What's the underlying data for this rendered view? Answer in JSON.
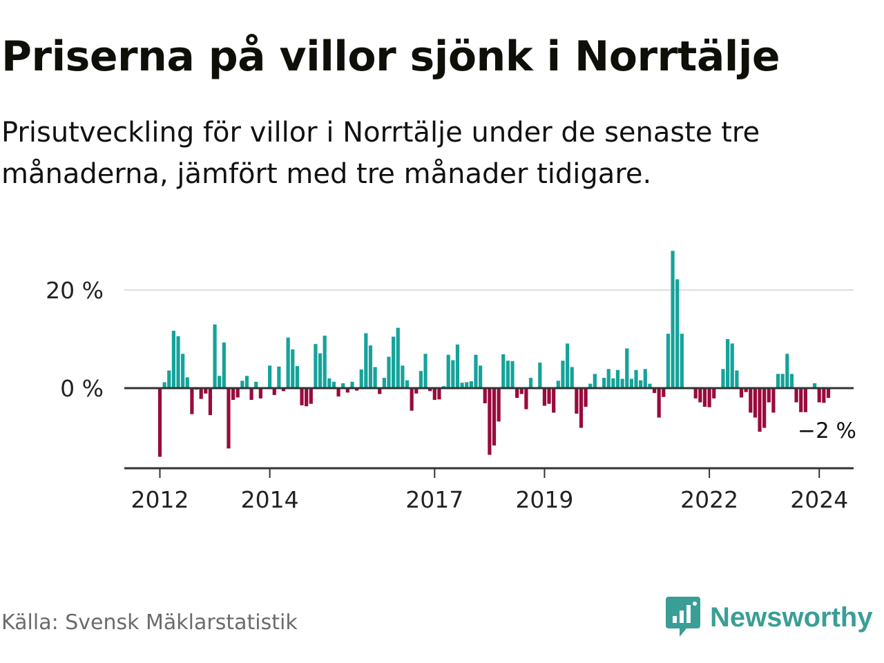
{
  "header": {
    "title": "Priserna på villor sjönk i Norrtälje",
    "subtitle_line1": "Prisutveckling för villor i Norrtälje under de senaste tre",
    "subtitle_line2": "månaderna, jämfört med tre månader tidigare."
  },
  "footer": {
    "source": "Källa: Svensk Mäklarstatistik",
    "brand": "Newsworthy"
  },
  "colors": {
    "positive": "#15a39a",
    "negative": "#990a3d",
    "axis": "#333333",
    "grid": "#dddddd",
    "brand": "#3a9e96"
  },
  "chart_data": {
    "type": "bar",
    "title": "Priserna på villor sjönk i Norrtälje",
    "xlabel": "",
    "ylabel": "",
    "ylim": [
      -16,
      29
    ],
    "yticks": [
      {
        "value": 0,
        "label": "0 %"
      },
      {
        "value": 20,
        "label": "20 %"
      }
    ],
    "xticks": [
      {
        "value": 0,
        "label": "2012"
      },
      {
        "value": 24,
        "label": "2014"
      },
      {
        "value": 60,
        "label": "2017"
      },
      {
        "value": 84,
        "label": "2019"
      },
      {
        "value": 120,
        "label": "2022"
      },
      {
        "value": 144,
        "label": "2024"
      }
    ],
    "end_label": {
      "value": -2,
      "text": "−2 %"
    },
    "x_start": "2012-01",
    "x_unit": "month",
    "values": [
      -14,
      1.2,
      3.6,
      11.7,
      10.6,
      7,
      2.2,
      -5.3,
      -0.3,
      -2.2,
      -1.1,
      -5.5,
      13,
      2.5,
      9.3,
      -12.3,
      -2.4,
      -1.9,
      1.5,
      2.5,
      -2.4,
      1.3,
      -2.1,
      0,
      4.6,
      -1.4,
      4.4,
      -0.6,
      10.3,
      7.9,
      4.5,
      -3.5,
      -3.7,
      -3.2,
      9,
      7.1,
      10.7,
      2,
      1.3,
      -1.7,
      1,
      -0.9,
      1.3,
      -0.5,
      3.8,
      11.2,
      8.7,
      4.3,
      -1.2,
      2.1,
      6.4,
      10.5,
      12.3,
      4.6,
      1.6,
      -4.6,
      -1.1,
      3.5,
      7,
      -0.6,
      -2.4,
      -2.3,
      0.4,
      6.8,
      5.7,
      8.9,
      1.1,
      1.2,
      1.4,
      6.8,
      4.6,
      -3.1,
      -13.6,
      -11.7,
      -6.8,
      6.9,
      5.6,
      5.5,
      -2,
      -1.2,
      -4.3,
      2.1,
      0,
      5.2,
      -3.6,
      -3.2,
      -5,
      1.5,
      5.6,
      9.1,
      4.3,
      -5.2,
      -8.1,
      -3.8,
      0.9,
      2.9,
      0,
      2.1,
      3.9,
      2,
      3.7,
      1.9,
      8.1,
      1.9,
      3.7,
      1.6,
      3.9,
      0.9,
      -1,
      -6,
      -1.8,
      11.1,
      28,
      22.2,
      11.1,
      0,
      0,
      -2.1,
      -2.9,
      -3.8,
      -3.9,
      -2.1,
      0,
      3.9,
      10,
      9.1,
      3.6,
      -1.9,
      -0.8,
      -5,
      -6,
      -8.9,
      -8.1,
      -2.9,
      -5,
      2.9,
      2.9,
      7,
      2.9,
      -2.9,
      -4.9,
      -4.9,
      0,
      1,
      -2.9,
      -3,
      -2
    ]
  }
}
